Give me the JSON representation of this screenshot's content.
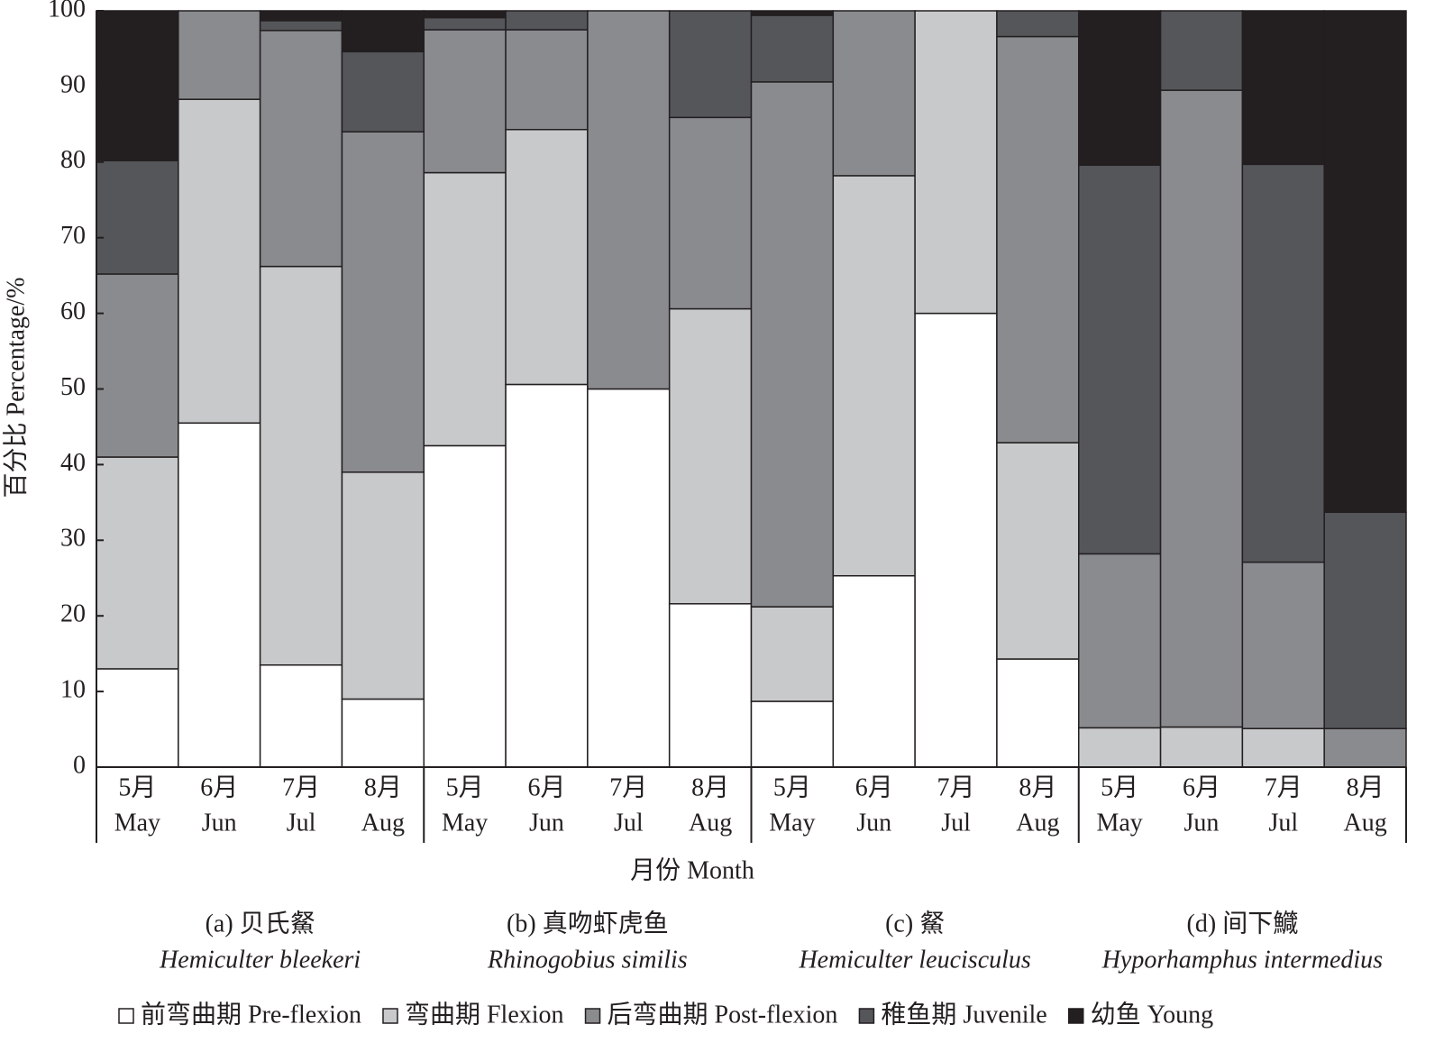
{
  "chart_data": {
    "type": "stacked_bar",
    "y_label": "百分比 Percentage/%",
    "x_label": "月份 Month",
    "ylim": [
      0,
      100
    ],
    "yticks": [
      0,
      10,
      20,
      30,
      40,
      50,
      60,
      70,
      80,
      90,
      100
    ],
    "categories": [
      [
        "5月",
        "May"
      ],
      [
        "6月",
        "Jun"
      ],
      [
        "7月",
        "Jul"
      ],
      [
        "8月",
        "Aug"
      ],
      [
        "5月",
        "May"
      ],
      [
        "6月",
        "Jun"
      ],
      [
        "7月",
        "Jul"
      ],
      [
        "8月",
        "Aug"
      ],
      [
        "5月",
        "May"
      ],
      [
        "6月",
        "Jun"
      ],
      [
        "7月",
        "Jul"
      ],
      [
        "8月",
        "Aug"
      ],
      [
        "5月",
        "May"
      ],
      [
        "6月",
        "Jun"
      ],
      [
        "7月",
        "Jul"
      ],
      [
        "8月",
        "Aug"
      ]
    ],
    "groups": [
      {
        "label": "(a) 贝氏䱗",
        "species": "Hemiculter bleekeri"
      },
      {
        "label": "(b) 真吻虾虎鱼",
        "species": "Rhinogobius similis"
      },
      {
        "label": "(c) 䱗",
        "species": "Hemiculter leucisculus"
      },
      {
        "label": "(d) 间下鱵",
        "species": "Hyporhamphus intermedius"
      }
    ],
    "series": [
      {
        "name": "前弯曲期 Pre-flexion",
        "color": "#ffffff",
        "values": [
          13,
          45.5,
          13.5,
          9,
          42.5,
          50.6,
          50,
          21.6,
          8.7,
          25.3,
          60,
          14.3,
          0,
          0,
          0,
          0
        ]
      },
      {
        "name": "弯曲期 Flexion",
        "color": "#c8c9cb",
        "values": [
          28,
          42.8,
          52.7,
          30,
          36.1,
          33.7,
          0,
          39,
          12.5,
          52.9,
          40,
          28.6,
          5.2,
          5.3,
          5.1,
          0
        ]
      },
      {
        "name": "后弯曲期 Post-flexion",
        "color": "#8a8b8f",
        "values": [
          24.2,
          11.7,
          31.2,
          45,
          18.9,
          13.2,
          50,
          25.3,
          69.4,
          21.8,
          0,
          53.7,
          23,
          84.2,
          22,
          5.1
        ]
      },
      {
        "name": "稚鱼期 Juvenile",
        "color": "#55565a",
        "values": [
          15,
          0,
          1.3,
          10.6,
          1.6,
          2.5,
          0,
          14.1,
          8.8,
          0,
          0,
          3.4,
          51.4,
          10.5,
          52.6,
          28.6
        ]
      },
      {
        "name": "幼鱼 Young",
        "color": "#231f20",
        "values": [
          19.8,
          0,
          1.3,
          5.4,
          0.9,
          0,
          0,
          0,
          0.6,
          0,
          0,
          0,
          20.4,
          0,
          20.3,
          66.3
        ]
      }
    ]
  }
}
